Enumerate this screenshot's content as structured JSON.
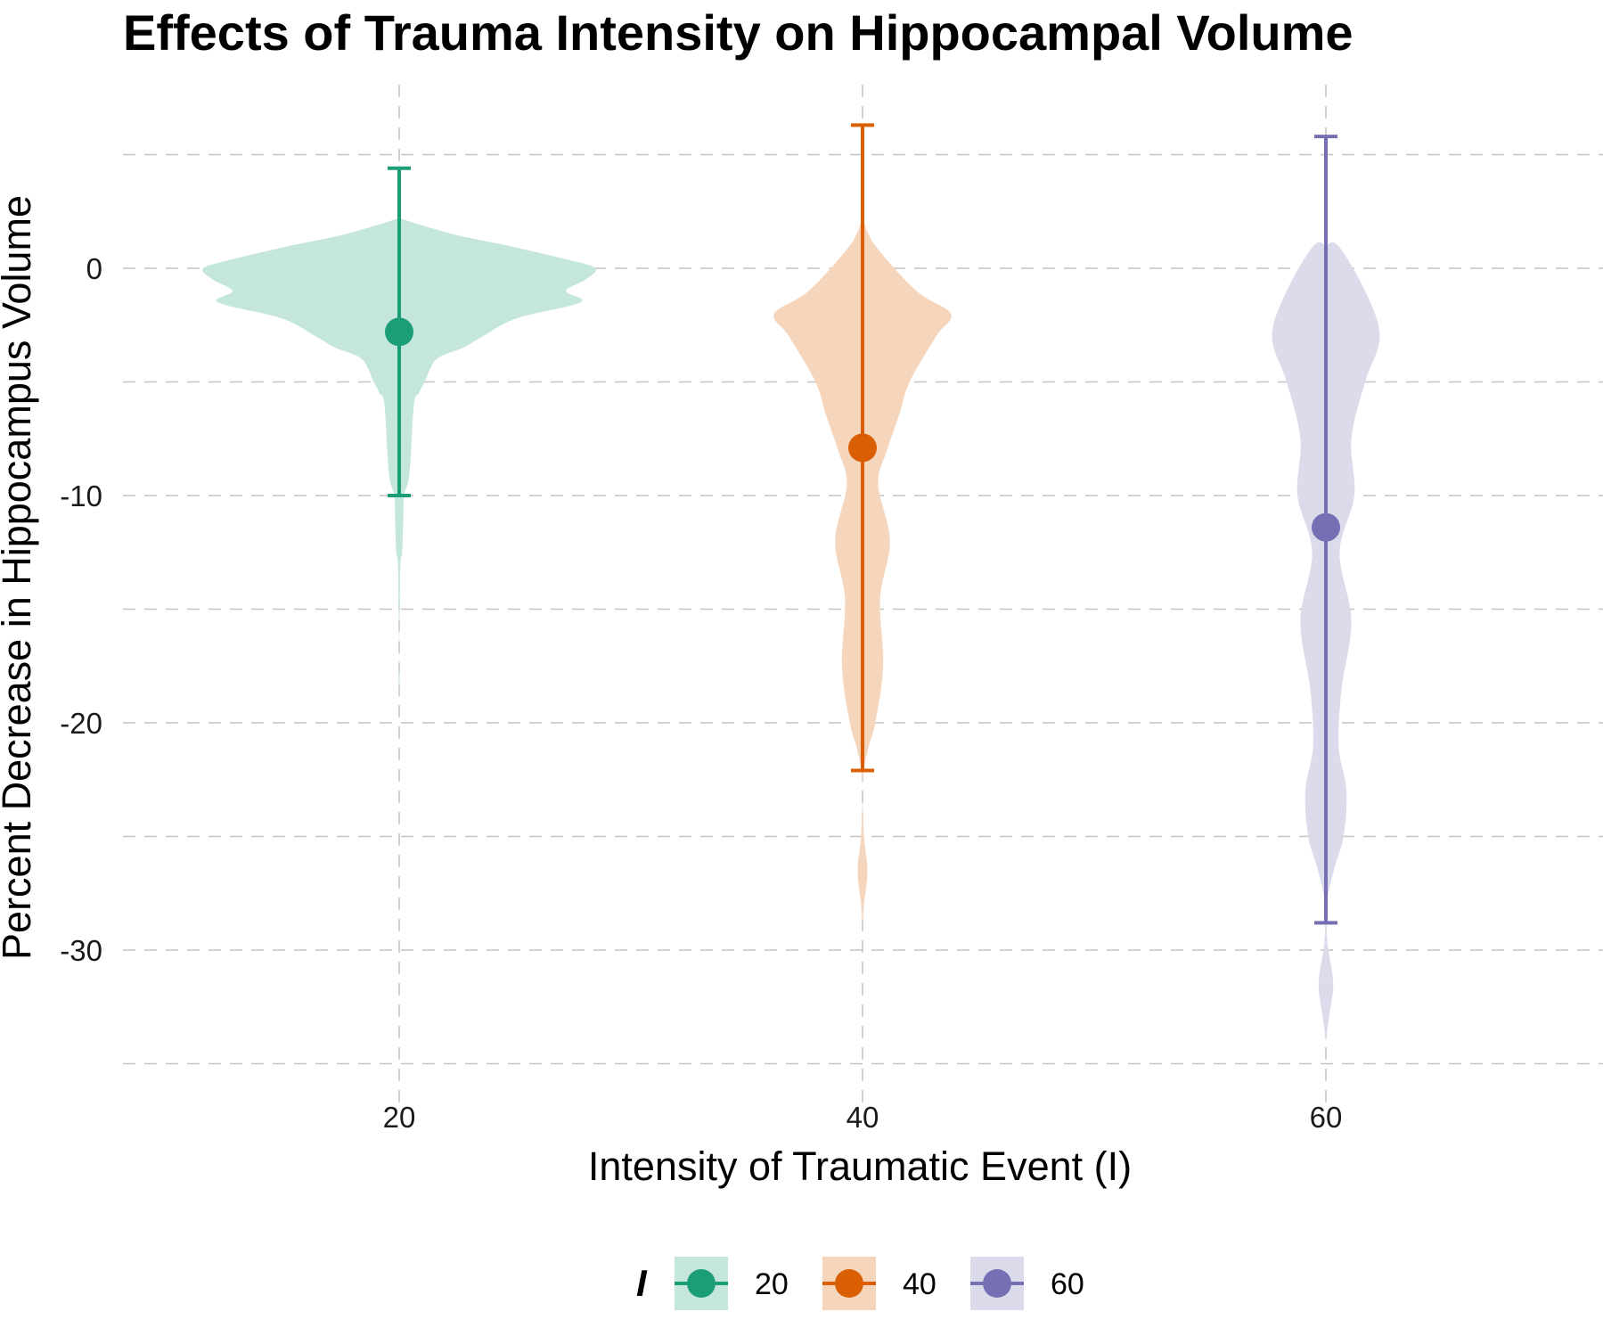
{
  "chart_data": {
    "type": "violin",
    "title": "Effects of Trauma Intensity on Hippocampal Volume",
    "xlabel": "Intensity of Traumatic Event (I)",
    "ylabel": "Percent Decrease in Hippocampus Volume",
    "x_ticks": [
      "20",
      "40",
      "60"
    ],
    "y_ticks": [
      "0",
      "-10",
      "-20",
      "-30"
    ],
    "ylim": [
      -35.5,
      5.5
    ],
    "xlim": [
      8,
      76
    ],
    "grid": true,
    "legend": {
      "title": "I",
      "position": "bottom",
      "entries": [
        "20",
        "40",
        "60"
      ]
    },
    "series": [
      {
        "name": "20",
        "x": 20,
        "mean": -2.8,
        "error_low": -10.0,
        "error_high": 4.4,
        "color": "#1b9e77",
        "fill": "#c5e6da",
        "density": [
          [
            2.2,
            0
          ],
          [
            1.5,
            5.5
          ],
          [
            1.0,
            11
          ],
          [
            0.4,
            17
          ],
          [
            0,
            20
          ],
          [
            -0.5,
            19
          ],
          [
            -1.0,
            17
          ],
          [
            -1.5,
            18.5
          ],
          [
            -2.2,
            12
          ],
          [
            -3.0,
            8.5
          ],
          [
            -3.5,
            6.5
          ],
          [
            -4.0,
            3.8
          ],
          [
            -5.0,
            2.6
          ],
          [
            -5.5,
            2.0
          ],
          [
            -6.0,
            1.5
          ],
          [
            -9.0,
            1.05
          ],
          [
            -10.0,
            0.5
          ],
          [
            -11.0,
            0.42
          ],
          [
            -12.5,
            0.3
          ],
          [
            -13.0,
            0.12
          ],
          [
            -15.0,
            0.05
          ],
          [
            -17.0,
            0.01
          ],
          [
            -18.0,
            0.05
          ],
          [
            -19.0,
            0
          ]
        ]
      },
      {
        "name": "40",
        "x": 40,
        "mean": -7.9,
        "error_low": -22.1,
        "error_high": 6.3,
        "color": "#d95f02",
        "fill": "#f5d6bd",
        "density": [
          [
            2.2,
            0
          ],
          [
            1.0,
            1.3
          ],
          [
            -1.0,
            5.5
          ],
          [
            -2.0,
            9.0
          ],
          [
            -3.0,
            7.5
          ],
          [
            -5.0,
            4.8
          ],
          [
            -6.5,
            3.7
          ],
          [
            -8.0,
            2.5
          ],
          [
            -9.5,
            1.6
          ],
          [
            -12.0,
            2.8
          ],
          [
            -14.5,
            1.8
          ],
          [
            -17.5,
            2.1
          ],
          [
            -20.0,
            1.3
          ],
          [
            -21.0,
            0.65
          ],
          [
            -22.0,
            0.15
          ],
          [
            -23.0,
            0
          ],
          [
            -25.0,
            0.15
          ],
          [
            -26.5,
            0.5
          ],
          [
            -28.0,
            0.15
          ],
          [
            -29.0,
            0
          ]
        ]
      },
      {
        "name": "60",
        "x": 60,
        "mean": -11.4,
        "error_low": -28.8,
        "error_high": 5.8,
        "color": "#7570b3",
        "fill": "#dcdbeb",
        "density": [
          [
            1.0,
            0
          ],
          [
            1.0,
            1.25
          ],
          [
            -1.0,
            4.0
          ],
          [
            -3.0,
            5.5
          ],
          [
            -5.0,
            4.0
          ],
          [
            -7.5,
            2.6
          ],
          [
            -10.0,
            2.9
          ],
          [
            -12.5,
            1.4
          ],
          [
            -15.5,
            2.6
          ],
          [
            -18.5,
            1.6
          ],
          [
            -21.0,
            1.3
          ],
          [
            -23.0,
            2.1
          ],
          [
            -25.0,
            1.8
          ],
          [
            -26.5,
            0.8
          ],
          [
            -28.0,
            0.05
          ],
          [
            -29.0,
            0.05
          ],
          [
            -30.0,
            0.25
          ],
          [
            -31.5,
            0.75
          ],
          [
            -33.0,
            0.3
          ],
          [
            -34.0,
            0
          ]
        ]
      }
    ]
  }
}
